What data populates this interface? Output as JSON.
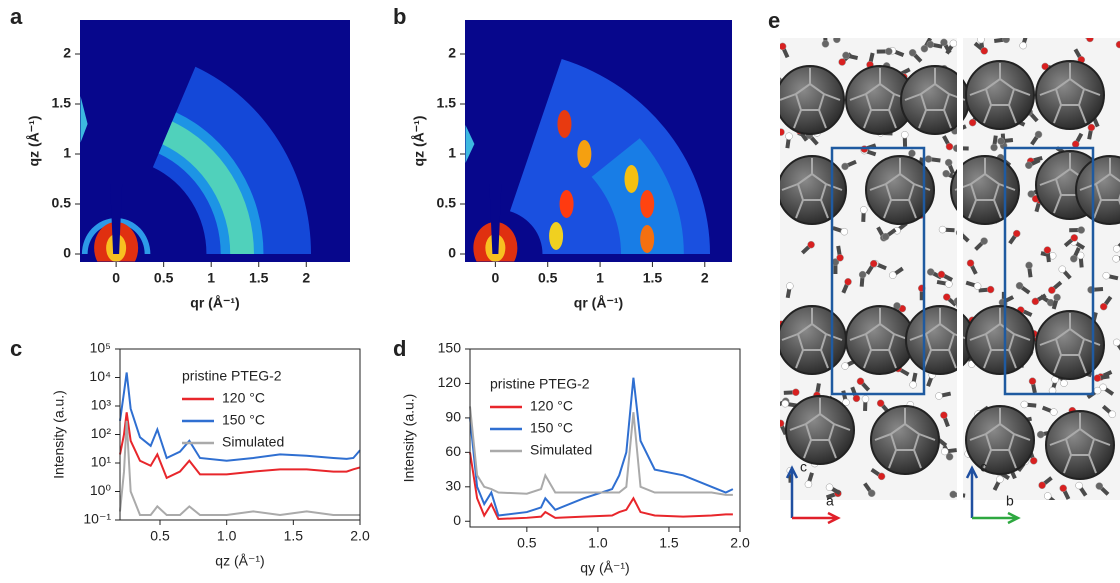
{
  "chart_data": [
    {
      "type": "image",
      "panel_label": "a",
      "xlabel": "qr (Å⁻¹)",
      "ylabel": "qz (Å⁻¹)",
      "xlim": [
        -0.38,
        2.46
      ],
      "ylim": [
        -0.08,
        2.34
      ],
      "xticks": [
        0,
        0.5,
        1,
        1.5,
        2
      ],
      "yticks": [
        0,
        0.5,
        1,
        1.5,
        2
      ]
    },
    {
      "type": "image",
      "panel_label": "b",
      "xlabel": "qr (Å⁻¹)",
      "ylabel": "qz (Å⁻¹)",
      "xlim": [
        -0.29,
        2.26
      ],
      "ylim": [
        -0.08,
        2.34
      ],
      "xticks": [
        0,
        0.5,
        1,
        1.5,
        2
      ],
      "yticks": [
        0,
        0.5,
        1,
        1.5,
        2
      ]
    },
    {
      "type": "line",
      "panel_label": "c",
      "xlabel": "qz (Å⁻¹)",
      "ylabel": "Intensity (a.u.)",
      "log_y": true,
      "legend_title": "pristine PTEG-2",
      "x": [
        0.2,
        0.23,
        0.25,
        0.28,
        0.35,
        0.43,
        0.48,
        0.55,
        0.65,
        0.72,
        0.8,
        1.0,
        1.2,
        1.4,
        1.6,
        1.8,
        1.9,
        1.95,
        2.0
      ],
      "series": [
        {
          "name": "120 °C",
          "color": "#e8262b",
          "values": [
            20,
            100,
            600,
            60,
            12,
            8,
            20,
            3,
            5,
            12,
            4,
            4,
            5,
            6,
            6,
            5,
            5,
            6,
            7
          ]
        },
        {
          "name": "150 °C",
          "color": "#2f6fd1",
          "values": [
            300,
            3000,
            15000,
            800,
            80,
            40,
            150,
            15,
            25,
            60,
            15,
            12,
            15,
            20,
            18,
            15,
            14,
            15,
            28
          ]
        },
        {
          "name": "Simulated",
          "color": "#aaaaaa",
          "values": [
            0.2,
            5,
            300,
            1,
            0.15,
            0.15,
            0.3,
            0.15,
            0.15,
            0.3,
            0.15,
            0.15,
            0.2,
            0.15,
            0.2,
            0.15,
            0.15,
            0.15,
            0.15
          ]
        }
      ],
      "xlim": [
        0.2,
        2.0
      ],
      "ylim": [
        0.1,
        100000
      ],
      "xticks": [
        0.5,
        {
          "value": 1,
          "label": "1.0"
        },
        1.5,
        {
          "value": 2,
          "label": "2.0"
        }
      ],
      "yticks": [
        {
          "value": 0.1,
          "label": "10⁻¹"
        },
        {
          "value": 1,
          "label": "10⁰"
        },
        {
          "value": 10,
          "label": "10¹"
        },
        {
          "value": 100,
          "label": "10²"
        },
        {
          "value": 1000,
          "label": "10³"
        },
        {
          "value": 10000,
          "label": "10⁴"
        },
        {
          "value": 100000,
          "label": "10⁵"
        }
      ]
    },
    {
      "type": "line",
      "panel_label": "d",
      "xlabel": "qy (Å⁻¹)",
      "ylabel": "Intensity (a.u.)",
      "log_y": false,
      "legend_title": "pristine PTEG-2",
      "x": [
        0.1,
        0.15,
        0.2,
        0.25,
        0.3,
        0.5,
        0.6,
        0.63,
        0.7,
        0.9,
        1.1,
        1.15,
        1.2,
        1.25,
        1.3,
        1.4,
        1.6,
        1.8,
        1.9,
        1.95
      ],
      "series": [
        {
          "name": "120 °C",
          "color": "#e8262b",
          "values": [
            60,
            20,
            5,
            15,
            2,
            3,
            4,
            8,
            3,
            4,
            5,
            8,
            10,
            20,
            8,
            5,
            4,
            5,
            6,
            6
          ]
        },
        {
          "name": "150 °C",
          "color": "#2f6fd1",
          "values": [
            90,
            30,
            15,
            25,
            5,
            8,
            12,
            20,
            10,
            20,
            28,
            40,
            60,
            125,
            70,
            45,
            40,
            30,
            25,
            28
          ]
        },
        {
          "name": "Simulated",
          "color": "#aaaaaa",
          "values": [
            100,
            40,
            30,
            28,
            25,
            24,
            28,
            40,
            25,
            25,
            25,
            25,
            30,
            95,
            30,
            25,
            25,
            25,
            23,
            23
          ]
        }
      ],
      "xlim": [
        0.1,
        2.0
      ],
      "ylim": [
        -5,
        150
      ],
      "xticks": [
        0.5,
        {
          "value": 1,
          "label": "1.0"
        },
        1.5,
        {
          "value": 2,
          "label": "2.0"
        }
      ],
      "yticks": [
        0,
        30,
        60,
        90,
        120,
        150
      ]
    },
    {
      "type": "structure",
      "panel_label": "e",
      "axis_labels": [
        [
          "c",
          "a"
        ],
        [
          "c",
          "b"
        ]
      ]
    }
  ]
}
